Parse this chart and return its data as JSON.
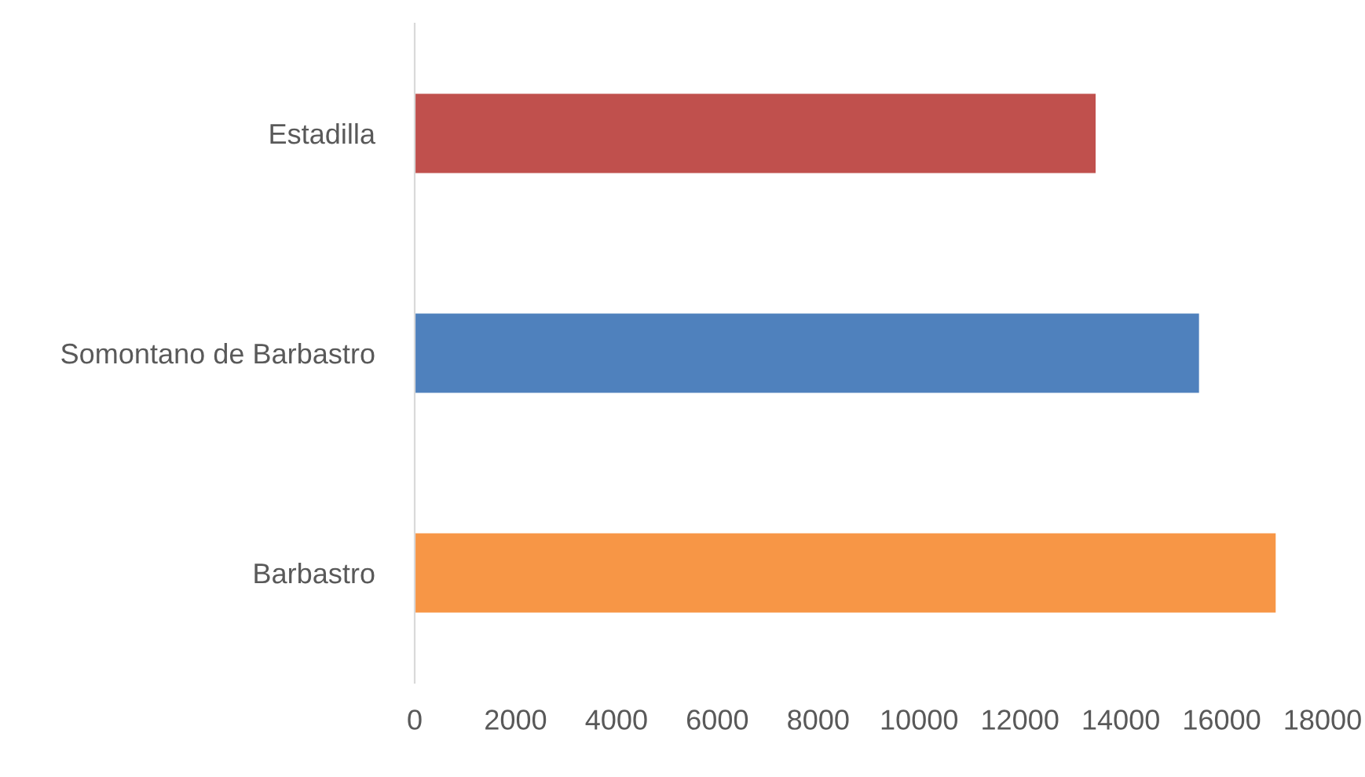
{
  "chart_data": {
    "type": "bar",
    "orientation": "horizontal",
    "categories": [
      "Estadilla",
      "Somontano de Barbastro",
      "Barbastro"
    ],
    "values": [
      13500,
      15550,
      17070
    ],
    "colors": [
      "#c0504d",
      "#4f81bd",
      "#f79646"
    ],
    "xlim": [
      0,
      18000
    ],
    "xticks": [
      0,
      2000,
      4000,
      6000,
      8000,
      10000,
      12000,
      14000,
      16000,
      18000
    ],
    "grid": false
  }
}
